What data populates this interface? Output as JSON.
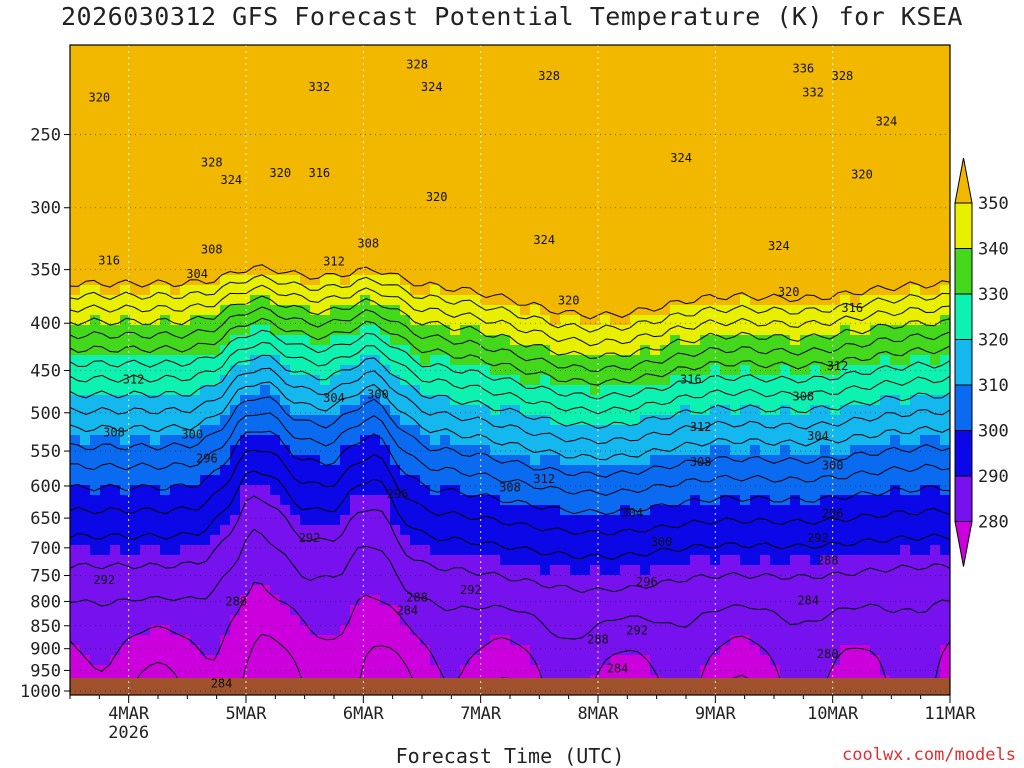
{
  "chart_data": {
    "type": "heatmap",
    "title": "2026030312 GFS Forecast Potential Temperature (K) for KSEA",
    "xlabel": "Forecast Time (UTC)",
    "credit": "coolwx.com/models",
    "x_ticks": [
      {
        "label": "4MAR",
        "sub": "2026",
        "t": 12
      },
      {
        "label": "5MAR",
        "sub": "",
        "t": 36
      },
      {
        "label": "6MAR",
        "sub": "",
        "t": 60
      },
      {
        "label": "7MAR",
        "sub": "",
        "t": 84
      },
      {
        "label": "8MAR",
        "sub": "",
        "t": 108
      },
      {
        "label": "9MAR",
        "sub": "",
        "t": 132
      },
      {
        "label": "10MAR",
        "sub": "",
        "t": 156
      },
      {
        "label": "11MAR",
        "sub": "",
        "t": 180
      }
    ],
    "xlim_hours": [
      0,
      180
    ],
    "y_ticks": [
      250,
      300,
      350,
      400,
      450,
      500,
      550,
      600,
      650,
      700,
      750,
      800,
      850,
      900,
      950,
      1000
    ],
    "ylim_hpa": [
      200,
      1010
    ],
    "y_scale": "log-pressure",
    "legend": {
      "levels": [
        280,
        290,
        300,
        310,
        320,
        330,
        340,
        350
      ],
      "colors": [
        "#cc00dd",
        "#7711ee",
        "#0b07e6",
        "#0b6bf0",
        "#14b8ef",
        "#0df2b0",
        "#44d81c",
        "#e8f000",
        "#f2b800"
      ]
    },
    "colors": {
      "ground": "#a0522d"
    },
    "contour_labels": [
      {
        "v": "320",
        "t": 6,
        "p": 228
      },
      {
        "v": "332",
        "t": 51,
        "p": 222
      },
      {
        "v": "328",
        "t": 71,
        "p": 210
      },
      {
        "v": "324",
        "t": 74,
        "p": 222
      },
      {
        "v": "328",
        "t": 98,
        "p": 216
      },
      {
        "v": "336",
        "t": 150,
        "p": 212
      },
      {
        "v": "328",
        "t": 158,
        "p": 216
      },
      {
        "v": "332",
        "t": 152,
        "p": 225
      },
      {
        "v": "328",
        "t": 29,
        "p": 268
      },
      {
        "v": "324",
        "t": 33,
        "p": 280
      },
      {
        "v": "320",
        "t": 43,
        "p": 275
      },
      {
        "v": "316",
        "t": 51,
        "p": 275
      },
      {
        "v": "320",
        "t": 75,
        "p": 292
      },
      {
        "v": "324",
        "t": 125,
        "p": 265
      },
      {
        "v": "324",
        "t": 167,
        "p": 242
      },
      {
        "v": "320",
        "t": 162,
        "p": 276
      },
      {
        "v": "324",
        "t": 97,
        "p": 325
      },
      {
        "v": "324",
        "t": 145,
        "p": 330
      },
      {
        "v": "316",
        "t": 8,
        "p": 342
      },
      {
        "v": "308",
        "t": 29,
        "p": 333
      },
      {
        "v": "304",
        "t": 26,
        "p": 354
      },
      {
        "v": "308",
        "t": 61,
        "p": 328
      },
      {
        "v": "312",
        "t": 54,
        "p": 343
      },
      {
        "v": "320",
        "t": 147,
        "p": 370
      },
      {
        "v": "316",
        "t": 160,
        "p": 385
      },
      {
        "v": "320",
        "t": 102,
        "p": 378
      },
      {
        "v": "312",
        "t": 13,
        "p": 460
      },
      {
        "v": "316",
        "t": 127,
        "p": 460
      },
      {
        "v": "312",
        "t": 157,
        "p": 445
      },
      {
        "v": "304",
        "t": 54,
        "p": 482
      },
      {
        "v": "300",
        "t": 63,
        "p": 478
      },
      {
        "v": "308",
        "t": 150,
        "p": 480
      },
      {
        "v": "308",
        "t": 9,
        "p": 525
      },
      {
        "v": "300",
        "t": 25,
        "p": 528
      },
      {
        "v": "312",
        "t": 129,
        "p": 518
      },
      {
        "v": "304",
        "t": 153,
        "p": 530
      },
      {
        "v": "296",
        "t": 28,
        "p": 560
      },
      {
        "v": "308",
        "t": 129,
        "p": 565
      },
      {
        "v": "300",
        "t": 156,
        "p": 570
      },
      {
        "v": "312",
        "t": 97,
        "p": 590
      },
      {
        "v": "308",
        "t": 90,
        "p": 602
      },
      {
        "v": "296",
        "t": 67,
        "p": 612
      },
      {
        "v": "304",
        "t": 115,
        "p": 642
      },
      {
        "v": "296",
        "t": 156,
        "p": 643
      },
      {
        "v": "292",
        "t": 49,
        "p": 683
      },
      {
        "v": "300",
        "t": 121,
        "p": 690
      },
      {
        "v": "292",
        "t": 153,
        "p": 683
      },
      {
        "v": "288",
        "t": 155,
        "p": 722
      },
      {
        "v": "292",
        "t": 7,
        "p": 758
      },
      {
        "v": "296",
        "t": 118,
        "p": 762
      },
      {
        "v": "292",
        "t": 82,
        "p": 778
      },
      {
        "v": "288",
        "t": 34,
        "p": 800
      },
      {
        "v": "288",
        "t": 71,
        "p": 792
      },
      {
        "v": "284",
        "t": 69,
        "p": 818
      },
      {
        "v": "284",
        "t": 151,
        "p": 798
      },
      {
        "v": "292",
        "t": 116,
        "p": 860
      },
      {
        "v": "288",
        "t": 108,
        "p": 880
      },
      {
        "v": "280",
        "t": 155,
        "p": 912
      },
      {
        "v": "284",
        "t": 112,
        "p": 945
      },
      {
        "v": "284",
        "t": 31,
        "p": 982
      }
    ]
  }
}
